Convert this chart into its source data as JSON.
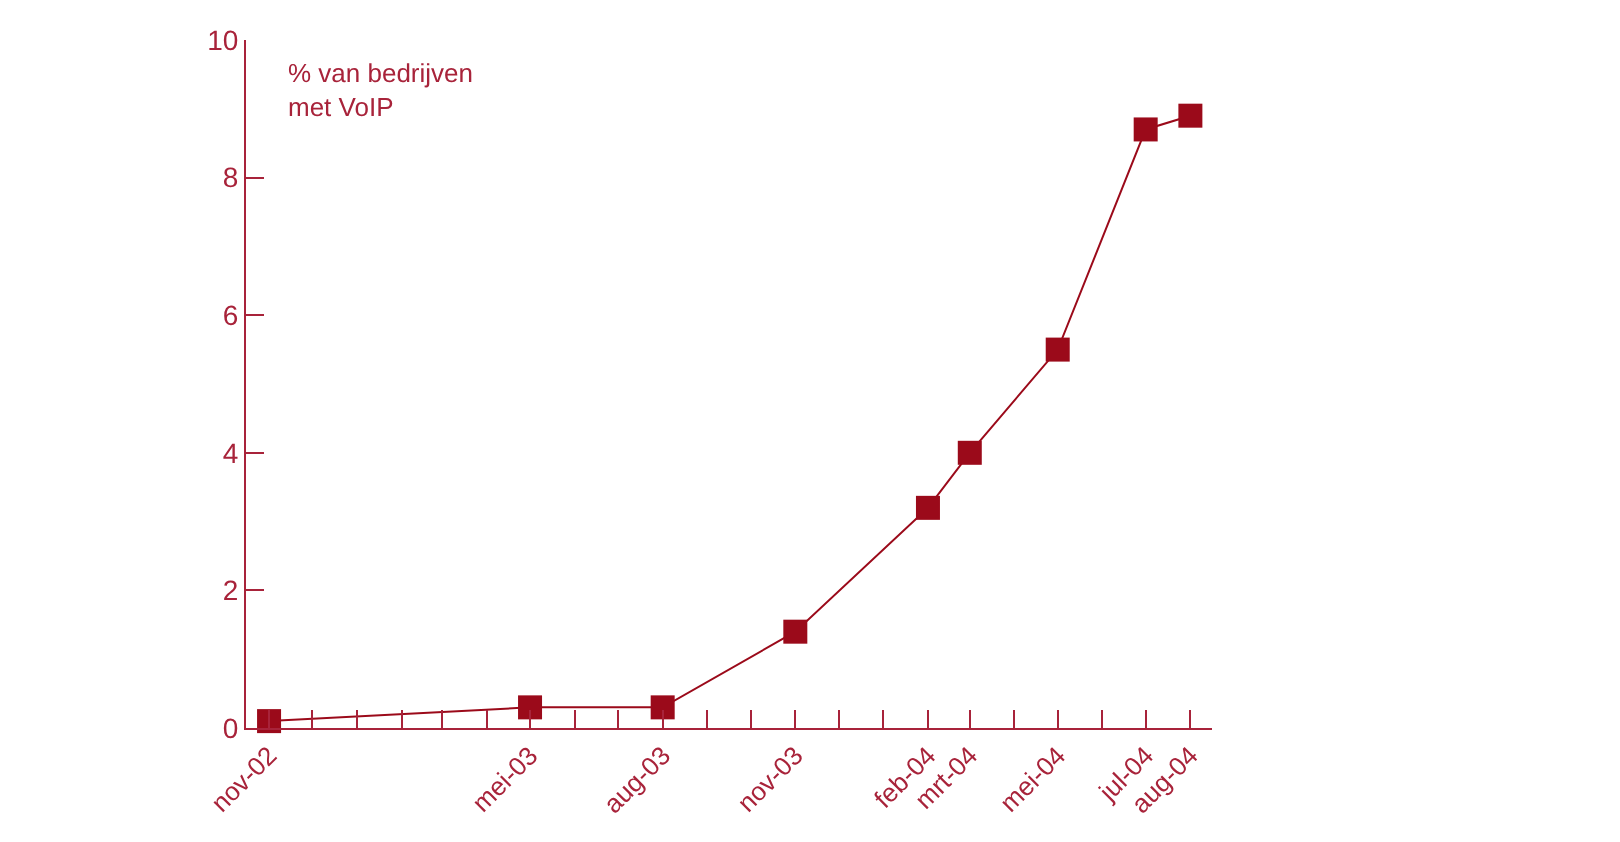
{
  "chart_data": {
    "type": "line",
    "ylabel": "% van bedrijven\nmet VoIP",
    "x": [
      "2002-11",
      "2003-05",
      "2003-08",
      "2003-11",
      "2004-02",
      "2004-03",
      "2004-05",
      "2004-07",
      "2004-08"
    ],
    "series": [
      {
        "color": "#9b0a1a",
        "values": [
          0.1,
          0.3,
          0.3,
          1.4,
          3.2,
          4.0,
          5.5,
          8.7,
          8.9
        ]
      }
    ],
    "marker": "square",
    "line_style": "solid",
    "xlim": [
      "2002-10-16",
      "2004-08-16"
    ],
    "xticks": [
      {
        "value": "2002-11",
        "label": "nov-02"
      },
      {
        "value": "2002-12",
        "label": null
      },
      {
        "value": "2003-01",
        "label": null
      },
      {
        "value": "2003-02",
        "label": null
      },
      {
        "value": "2003-03",
        "label": null
      },
      {
        "value": "2003-04",
        "label": null
      },
      {
        "value": "2003-05",
        "label": "mei-03"
      },
      {
        "value": "2003-06",
        "label": null
      },
      {
        "value": "2003-07",
        "label": null
      },
      {
        "value": "2003-08",
        "label": "aug-03"
      },
      {
        "value": "2003-09",
        "label": null
      },
      {
        "value": "2003-10",
        "label": null
      },
      {
        "value": "2003-11",
        "label": "nov-03"
      },
      {
        "value": "2003-12",
        "label": null
      },
      {
        "value": "2004-01",
        "label": null
      },
      {
        "value": "2004-02",
        "label": "feb-04"
      },
      {
        "value": "2004-03",
        "label": "mrt-04"
      },
      {
        "value": "2004-04",
        "label": null
      },
      {
        "value": "2004-05",
        "label": "mei-04"
      },
      {
        "value": "2004-06",
        "label": null
      },
      {
        "value": "2004-07",
        "label": "jul-04"
      },
      {
        "value": "2004-08",
        "label": "aug-04"
      }
    ],
    "ylim": [
      0,
      10
    ],
    "yticks": [
      0,
      2,
      4,
      6,
      8,
      10
    ]
  }
}
